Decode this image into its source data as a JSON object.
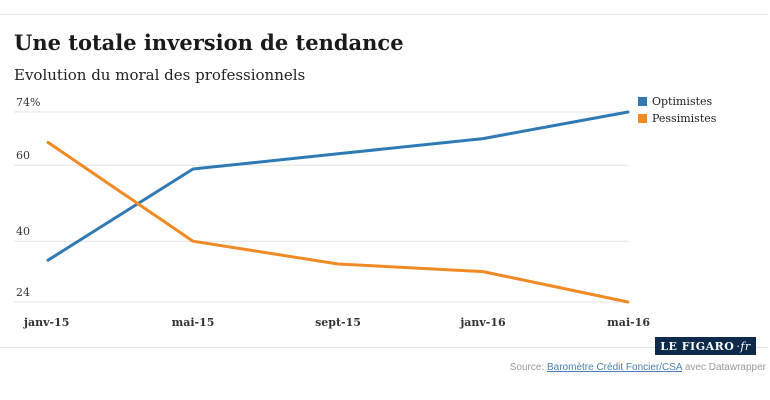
{
  "header": {
    "title": "Une totale inversion de tendance",
    "subtitle": "Evolution du moral des professionnels"
  },
  "chart_data": {
    "type": "line",
    "title": "Une totale inversion de tendance",
    "subtitle": "Evolution du moral des professionnels",
    "categories": [
      "janv-15",
      "mai-15",
      "sept-15",
      "janv-16",
      "mai-16"
    ],
    "series": [
      {
        "name": "Optimistes",
        "color": "#2f7ab4",
        "values": [
          35,
          59,
          63,
          67,
          74
        ]
      },
      {
        "name": "Pessimistes",
        "color": "#f08a24",
        "values": [
          66,
          40,
          34,
          32,
          24
        ]
      }
    ],
    "yticks": [
      {
        "value": 74,
        "label": "74%"
      },
      {
        "value": 60,
        "label": "60"
      },
      {
        "value": 40,
        "label": "40"
      },
      {
        "value": 24,
        "label": "24"
      }
    ],
    "ylim": [
      24,
      74
    ],
    "xlabel": "",
    "ylabel": "",
    "grid": true,
    "legend_position": "top-right"
  },
  "footer": {
    "logo_main": "LE FIGARO",
    "logo_suffix": "·fr",
    "source_prefix": "Source: ",
    "source_link": "Baromètre Crédit Foncier/CSA",
    "source_suffix": " avec Datawrapper"
  }
}
